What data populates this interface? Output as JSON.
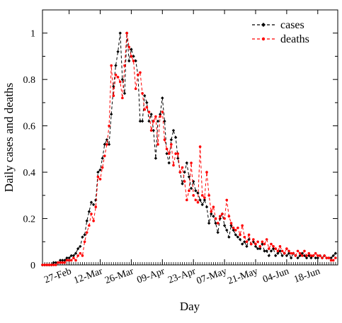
{
  "chart_data": {
    "type": "line",
    "title": "",
    "xlabel": "Day",
    "ylabel": "Daily cases and deaths",
    "xlim": [
      "2020-02-15",
      "2020-06-27"
    ],
    "ylim": [
      0,
      1.1
    ],
    "xticks": [
      {
        "date": "2020-02-27",
        "label": "27-Feb"
      },
      {
        "date": "2020-03-12",
        "label": "12-Mar"
      },
      {
        "date": "2020-03-26",
        "label": "26-Mar"
      },
      {
        "date": "2020-04-09",
        "label": "09-Apr"
      },
      {
        "date": "2020-04-23",
        "label": "23-Apr"
      },
      {
        "date": "2020-05-07",
        "label": "07-May"
      },
      {
        "date": "2020-05-21",
        "label": "21-May"
      },
      {
        "date": "2020-06-04",
        "label": "04-Jun"
      },
      {
        "date": "2020-06-18",
        "label": "18-Jun"
      }
    ],
    "yticks": [
      0,
      0.2,
      0.4,
      0.6,
      0.8,
      1
    ],
    "ytick_labels": [
      "0",
      "0.2",
      "0.4",
      "0.6",
      "0.8",
      "1"
    ],
    "grid": false,
    "legend_position": "top-right",
    "x_start": "2020-02-15",
    "series": [
      {
        "name": "cases",
        "color": "#000000",
        "marker": "diamond",
        "values": [
          0.0,
          0.0,
          0.0,
          0.0,
          0.0,
          0.01,
          0.01,
          0.01,
          0.02,
          0.02,
          0.02,
          0.03,
          0.03,
          0.04,
          0.04,
          0.05,
          0.07,
          0.08,
          0.12,
          0.13,
          0.19,
          0.23,
          0.27,
          0.26,
          0.28,
          0.4,
          0.41,
          0.46,
          0.52,
          0.54,
          0.52,
          0.65,
          0.77,
          0.86,
          0.92,
          1.0,
          0.8,
          0.74,
          1.0,
          0.88,
          0.93,
          0.9,
          0.88,
          0.82,
          0.62,
          0.62,
          0.73,
          0.7,
          0.62,
          0.65,
          0.58,
          0.46,
          0.62,
          0.65,
          0.72,
          0.62,
          0.48,
          0.44,
          0.54,
          0.58,
          0.55,
          0.46,
          0.4,
          0.35,
          0.4,
          0.44,
          0.38,
          0.33,
          0.36,
          0.32,
          0.31,
          0.28,
          0.26,
          0.28,
          0.25,
          0.18,
          0.22,
          0.21,
          0.18,
          0.14,
          0.2,
          0.22,
          0.17,
          0.15,
          0.12,
          0.17,
          0.15,
          0.13,
          0.12,
          0.11,
          0.09,
          0.1,
          0.08,
          0.11,
          0.09,
          0.1,
          0.08,
          0.07,
          0.07,
          0.09,
          0.06,
          0.06,
          0.04,
          0.06,
          0.07,
          0.04,
          0.05,
          0.06,
          0.04,
          0.05,
          0.04,
          0.05,
          0.03,
          0.05,
          0.04,
          0.03,
          0.04,
          0.05,
          0.04,
          0.03,
          0.04,
          0.03,
          0.04,
          0.03,
          0.03,
          0.04,
          0.03,
          0.04,
          0.03,
          0.03,
          0.03,
          0.04,
          0.05
        ]
      },
      {
        "name": "deaths",
        "color": "#ff0000",
        "marker": "circle",
        "values": [
          0.0,
          0.0,
          0.0,
          0.0,
          0.0,
          0.0,
          0.0,
          0.01,
          0.01,
          0.01,
          0.01,
          0.02,
          0.02,
          0.02,
          0.03,
          0.02,
          0.04,
          0.05,
          0.04,
          0.1,
          0.14,
          0.17,
          0.22,
          0.19,
          0.25,
          0.38,
          0.37,
          0.42,
          0.47,
          0.52,
          0.6,
          0.86,
          0.73,
          0.82,
          0.81,
          0.79,
          0.72,
          0.86,
          1.0,
          0.94,
          0.9,
          0.88,
          0.76,
          0.82,
          0.83,
          0.74,
          0.67,
          0.68,
          0.66,
          0.58,
          0.62,
          0.64,
          0.52,
          0.64,
          0.66,
          0.54,
          0.5,
          0.48,
          0.52,
          0.43,
          0.48,
          0.48,
          0.4,
          0.42,
          0.36,
          0.28,
          0.32,
          0.44,
          0.3,
          0.28,
          0.27,
          0.51,
          0.3,
          0.29,
          0.4,
          0.3,
          0.23,
          0.25,
          0.2,
          0.18,
          0.21,
          0.22,
          0.2,
          0.28,
          0.21,
          0.18,
          0.16,
          0.15,
          0.16,
          0.13,
          0.17,
          0.12,
          0.1,
          0.13,
          0.09,
          0.11,
          0.09,
          0.1,
          0.08,
          0.1,
          0.09,
          0.11,
          0.07,
          0.09,
          0.08,
          0.07,
          0.06,
          0.08,
          0.06,
          0.05,
          0.07,
          0.06,
          0.05,
          0.05,
          0.04,
          0.06,
          0.05,
          0.04,
          0.06,
          0.04,
          0.05,
          0.04,
          0.04,
          0.05,
          0.04,
          0.04,
          0.03,
          0.04,
          0.03,
          0.03,
          0.02,
          0.02,
          0.03
        ]
      }
    ]
  }
}
